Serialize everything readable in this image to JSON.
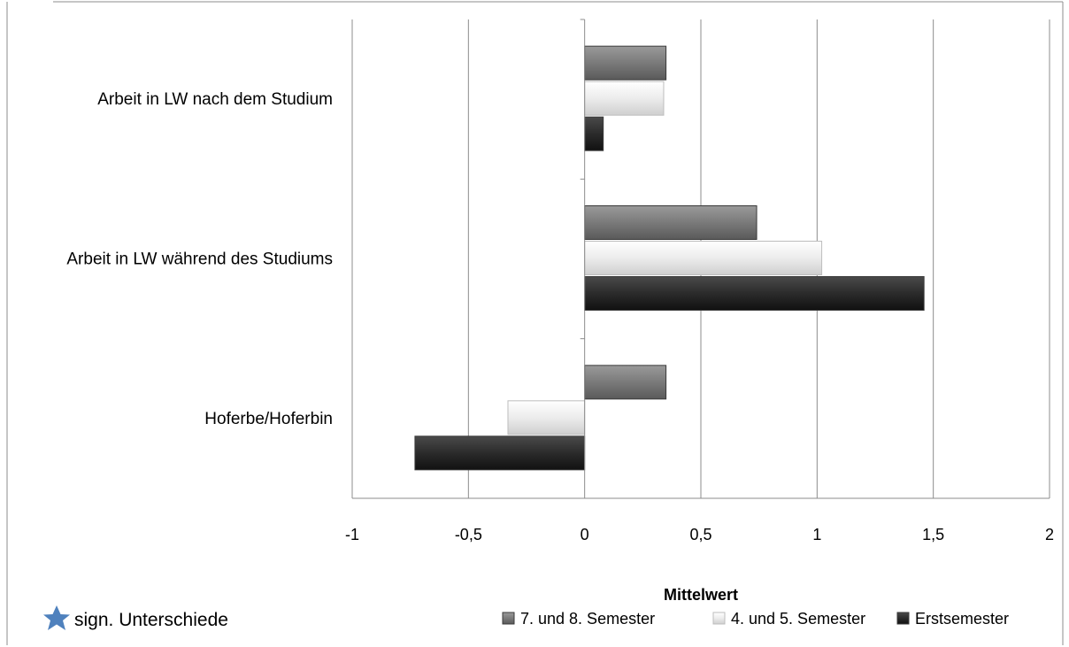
{
  "chart_data": {
    "type": "bar",
    "orientation": "horizontal",
    "categories": [
      "Arbeit in LW nach dem Studium",
      "Arbeit in LW während des Studiums",
      "Hoferbe/Hoferbin"
    ],
    "series": [
      {
        "name": "7. und 8. Semester",
        "values": [
          0.35,
          0.74,
          0.35
        ],
        "color": "#7a7a7a"
      },
      {
        "name": "4. und 5. Semester",
        "values": [
          0.34,
          1.02,
          -0.33
        ],
        "color": "#e8e8e8"
      },
      {
        "name": "Erstsemester",
        "values": [
          0.08,
          1.46,
          -0.73
        ],
        "color": "#2b2b2b"
      }
    ],
    "xlabel": "Mittelwert",
    "xlim": [
      -1,
      2
    ],
    "xticks": [
      -1,
      -0.5,
      0,
      0.5,
      1,
      1.5,
      2
    ],
    "xtick_labels": [
      "-1",
      "-0,5",
      "0",
      "0,5",
      "1",
      "1,5",
      "2"
    ],
    "grid": "vertical",
    "legend_position": "bottom"
  },
  "note": {
    "icon": "star-icon",
    "text": "sign. Unterschiede",
    "color": "#4f81bd"
  }
}
